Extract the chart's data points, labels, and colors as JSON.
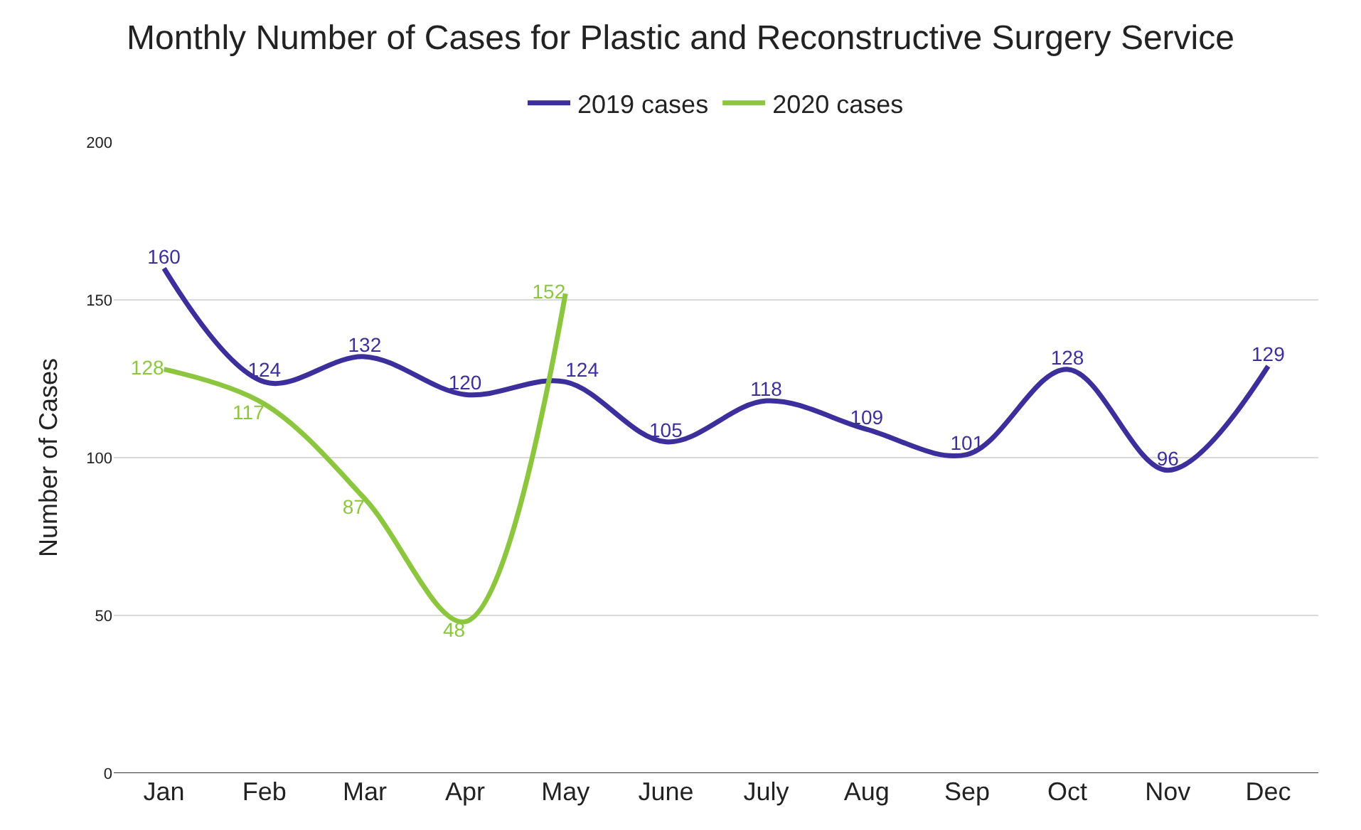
{
  "chart_data": {
    "type": "line",
    "title": "Monthly Number of Cases for Plastic and Reconstructive Surgery Service",
    "ylabel": "Number of Cases",
    "categories": [
      "Jan",
      "Feb",
      "Mar",
      "Apr",
      "May",
      "June",
      "July",
      "Aug",
      "Sep",
      "Oct",
      "Nov",
      "Dec"
    ],
    "series": [
      {
        "name": "2019 cases",
        "color": "#3c2f9c",
        "values": [
          160,
          124,
          132,
          120,
          124,
          105,
          118,
          109,
          101,
          128,
          96,
          129
        ]
      },
      {
        "name": "2020 cases",
        "color": "#8cc63f",
        "values": [
          128,
          117,
          87,
          48,
          152,
          null,
          null,
          null,
          null,
          null,
          null,
          null
        ]
      }
    ],
    "ylim": [
      0,
      200
    ],
    "yticks": [
      0,
      50,
      100,
      150,
      200
    ],
    "grid": "y",
    "legend": "top",
    "data_labels": true,
    "marker": "none",
    "line_style": "solid"
  }
}
